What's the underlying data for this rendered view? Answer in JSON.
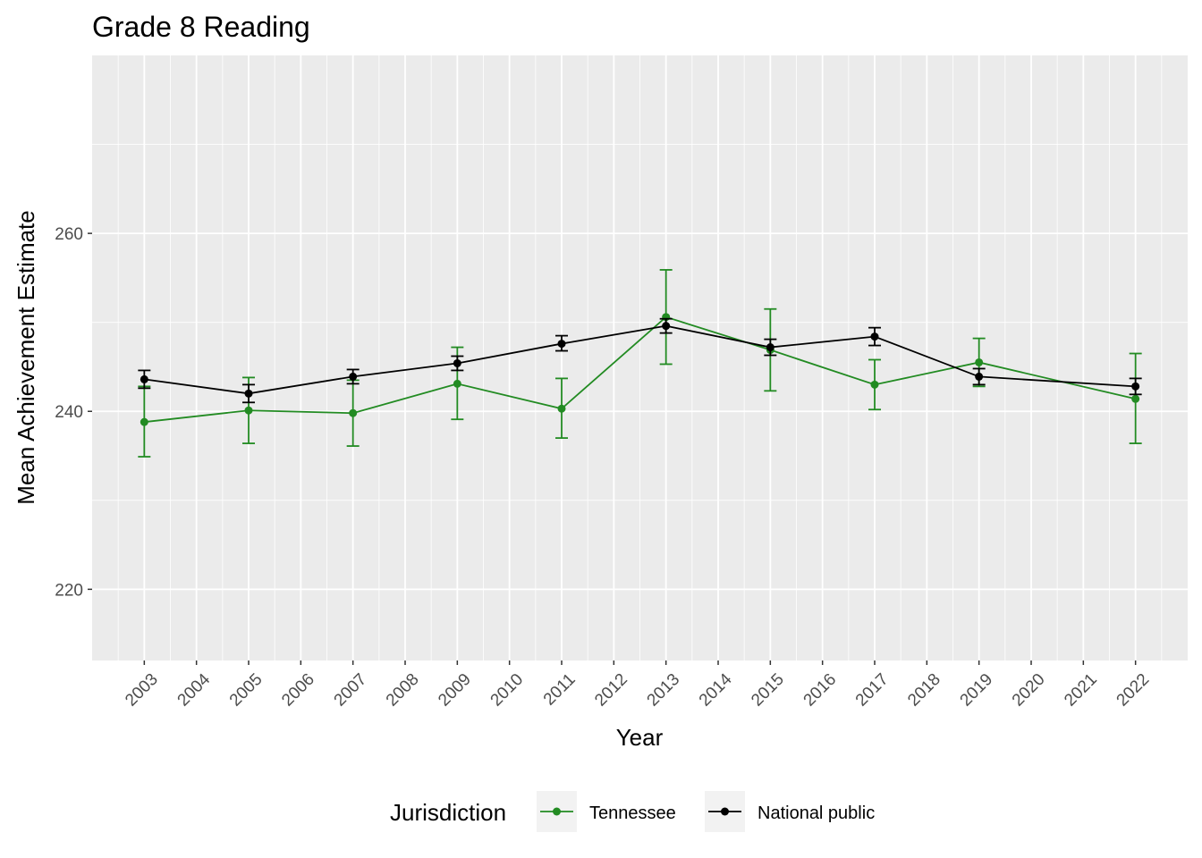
{
  "chart_data": {
    "type": "line",
    "title": "Grade 8 Reading",
    "xlabel": "Year",
    "ylabel": "Mean Achievement Estimate",
    "x_ticks": [
      "2003",
      "2004",
      "2005",
      "2006",
      "2007",
      "2008",
      "2009",
      "2010",
      "2011",
      "2012",
      "2013",
      "2014",
      "2015",
      "2016",
      "2017",
      "2018",
      "2019",
      "2020",
      "2021",
      "2022"
    ],
    "y_ticks": [
      220,
      240,
      260
    ],
    "xlim": [
      2002,
      2023
    ],
    "ylim": [
      212,
      280
    ],
    "grid": true,
    "legend": {
      "title": "Jurisdiction",
      "position": "bottom"
    },
    "series": [
      {
        "name": "Tennessee",
        "color": "#228b22",
        "x": [
          2003,
          2005,
          2007,
          2009,
          2011,
          2013,
          2015,
          2017,
          2019,
          2022
        ],
        "y": [
          238.8,
          240.1,
          239.8,
          243.1,
          240.3,
          250.6,
          246.9,
          243.0,
          245.5,
          241.4
        ],
        "lower": [
          234.9,
          236.4,
          236.1,
          239.1,
          237.0,
          245.3,
          242.3,
          240.2,
          242.8,
          236.4
        ],
        "upper": [
          242.8,
          243.8,
          243.5,
          247.2,
          243.7,
          255.9,
          251.5,
          245.8,
          248.2,
          246.5
        ]
      },
      {
        "name": "National public",
        "color": "#000000",
        "x": [
          2003,
          2005,
          2007,
          2009,
          2011,
          2013,
          2015,
          2017,
          2019,
          2022
        ],
        "y": [
          243.6,
          242.0,
          243.9,
          245.4,
          247.6,
          249.6,
          247.2,
          248.4,
          243.9,
          242.8
        ],
        "lower": [
          242.6,
          241.0,
          243.1,
          244.6,
          246.8,
          248.8,
          246.3,
          247.4,
          243.0,
          241.9
        ],
        "upper": [
          244.6,
          243.0,
          244.7,
          246.2,
          248.5,
          250.4,
          248.1,
          249.4,
          244.8,
          243.7
        ]
      }
    ]
  }
}
